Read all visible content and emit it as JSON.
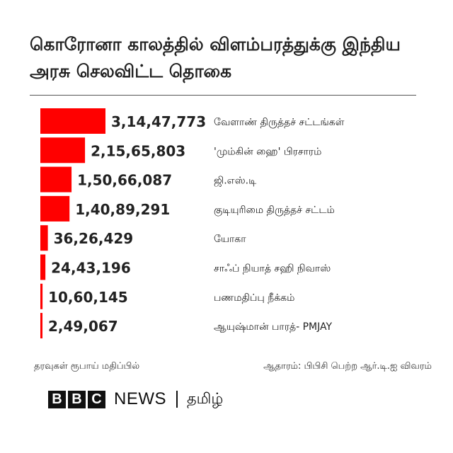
{
  "title": "கொரோனா காலத்தில் விளம்பரத்துக்கு இந்திய அரசு செலவிட்ட தொகை",
  "chart_data": {
    "type": "bar",
    "orientation": "horizontal",
    "title": "கொரோனா காலத்தில் விளம்பரத்துக்கு இந்திய அரசு செலவிட்ட தொகை",
    "categories": [
      "வேளாண் திருத்தச் சட்டங்கள்",
      "'மும்கின் ஹை' பிரசாரம்",
      "ஜி.எஸ்.டி",
      "குடியுரிமை திருத்தச் சட்டம்",
      "யோகா",
      "சாஃப் நியாத் சஹி நிவாஸ்",
      "பணமதிப்பு நீக்கம்",
      "ஆயுஷ்மான் பாரத்- PMJAY"
    ],
    "values": [
      31447773,
      21565803,
      15066087,
      14089291,
      3626429,
      2443196,
      1060145,
      249067
    ],
    "value_labels": [
      "3,14,47,773",
      "2,15,65,803",
      "1,50,66,087",
      "1,40,89,291",
      "36,26,429",
      "24,43,196",
      "10,60,145",
      "2,49,067"
    ],
    "bar_color": "#ff0000",
    "grid": false,
    "legend": "none"
  },
  "footer": {
    "note": "தரவுகள் ரூபாய் மதிப்பில்",
    "source": "ஆதாரம்: பிபிசி பெற்ற ஆர்.டி.ஐ விவரம்"
  },
  "logo": {
    "letters": [
      "B",
      "B",
      "C"
    ],
    "news": "NEWS",
    "service": "தமிழ்"
  }
}
